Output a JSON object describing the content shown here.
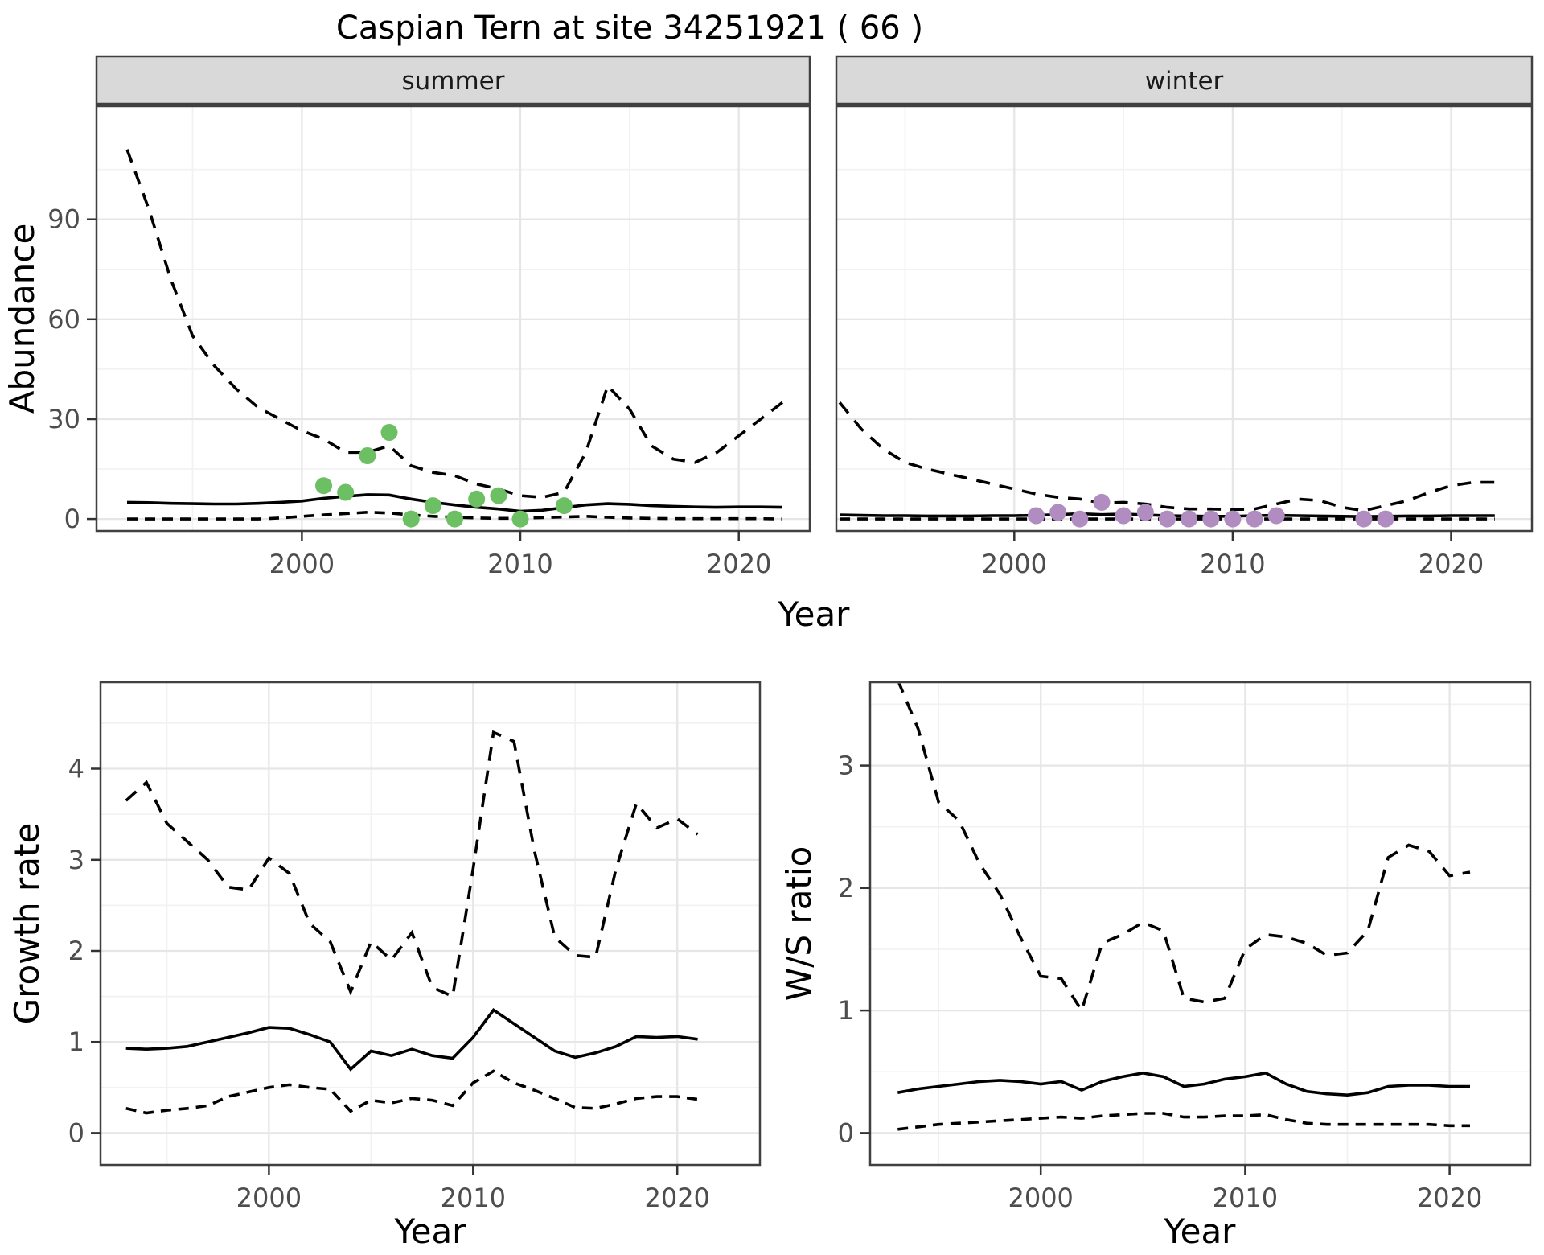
{
  "title": "Caspian Tern at site 34251921 ( 66 )",
  "shared_x_label": "Year",
  "colors": {
    "summer_points": "#6cbf63",
    "winter_points": "#b08cc0",
    "line": "#000000",
    "panel_border": "#404040",
    "strip_background": "#d9d9d9",
    "grid_major": "#e6e6e6",
    "grid_minor": "#f2f2f2",
    "tick_mark": "#333333",
    "tick_text": "#4d4d4d"
  },
  "chart_data": [
    {
      "type": "line",
      "name": "abundance-summer",
      "facet": "summer",
      "ylabel": "Abundance",
      "xlabel": "Year",
      "xlim": [
        1990.6,
        2023.25
      ],
      "ylim": [
        -3.6,
        124
      ],
      "xticks": [
        2000,
        2010,
        2020
      ],
      "yticks": [
        0,
        30,
        60,
        90
      ],
      "minor_x": [
        1995,
        2005,
        2015
      ],
      "minor_y": [
        15,
        45,
        75,
        105
      ],
      "x": [
        1992,
        1993,
        1994,
        1995,
        1996,
        1997,
        1998,
        1999,
        2000,
        2001,
        2002,
        2003,
        2004,
        2005,
        2006,
        2007,
        2008,
        2009,
        2010,
        2011,
        2012,
        2013,
        2014,
        2015,
        2016,
        2017,
        2018,
        2019,
        2020,
        2021,
        2022
      ],
      "series": [
        {
          "name": "upper-95ci",
          "style": "dashed",
          "values": [
            111,
            93,
            72,
            55,
            46,
            39,
            33.5,
            30,
            26.5,
            24,
            20,
            20,
            22,
            16,
            14,
            13,
            10.5,
            9,
            7,
            6.5,
            8,
            20,
            40,
            33,
            22,
            18,
            17,
            20,
            25,
            30,
            35
          ]
        },
        {
          "name": "median",
          "style": "solid",
          "values": [
            5,
            4.9,
            4.7,
            4.6,
            4.5,
            4.5,
            4.7,
            5,
            5.4,
            6.2,
            6.8,
            7.3,
            7.2,
            6,
            5,
            4.2,
            3.5,
            3,
            2.3,
            2.6,
            3.4,
            4.2,
            4.6,
            4.4,
            4,
            3.8,
            3.6,
            3.5,
            3.6,
            3.6,
            3.5
          ]
        },
        {
          "name": "lower-95ci",
          "style": "dashed",
          "values": [
            0,
            0,
            0,
            0,
            0,
            0,
            0,
            0.3,
            0.8,
            1.2,
            1.6,
            2,
            1.8,
            1.2,
            0.8,
            0.5,
            0.3,
            0.2,
            0.2,
            0.4,
            0.6,
            0.8,
            0.5,
            0.3,
            0.2,
            0.1,
            0.1,
            0.1,
            0.1,
            0.1,
            0
          ]
        }
      ],
      "points": {
        "name": "observed-counts",
        "color_key": "summer_points",
        "data": [
          [
            2001,
            10
          ],
          [
            2002,
            8
          ],
          [
            2003,
            19
          ],
          [
            2004,
            26
          ],
          [
            2005,
            0
          ],
          [
            2006,
            4
          ],
          [
            2007,
            0
          ],
          [
            2008,
            6
          ],
          [
            2009,
            7
          ],
          [
            2010,
            0
          ],
          [
            2012,
            4
          ]
        ]
      }
    },
    {
      "type": "line",
      "name": "abundance-winter",
      "facet": "winter",
      "ylabel": "Abundance",
      "xlabel": "Year",
      "xlim": [
        1991.85,
        2023.7
      ],
      "ylim": [
        -3.6,
        124
      ],
      "xticks": [
        2000,
        2010,
        2020
      ],
      "yticks": [
        0,
        30,
        60,
        90
      ],
      "minor_x": [
        1995,
        2005,
        2015
      ],
      "minor_y": [
        15,
        45,
        75,
        105
      ],
      "x": [
        1992,
        1993,
        1994,
        1995,
        1996,
        1997,
        1998,
        1999,
        2000,
        2001,
        2002,
        2003,
        2004,
        2005,
        2006,
        2007,
        2008,
        2009,
        2010,
        2011,
        2012,
        2013,
        2014,
        2015,
        2016,
        2017,
        2018,
        2019,
        2020,
        2021,
        2022
      ],
      "series": [
        {
          "name": "upper-95ci",
          "style": "dashed",
          "values": [
            35,
            27,
            21,
            17,
            15,
            13.5,
            12,
            10.5,
            9,
            7.5,
            6.5,
            6,
            4.8,
            5,
            4.5,
            3.5,
            3,
            3,
            2.8,
            3,
            4.5,
            6,
            5.5,
            3.5,
            2.5,
            4,
            5.5,
            8,
            10,
            11,
            11
          ]
        },
        {
          "name": "median",
          "style": "solid",
          "values": [
            1.2,
            1.1,
            1.0,
            1.0,
            0.9,
            0.9,
            0.9,
            1.0,
            1.0,
            1.1,
            1.3,
            1.6,
            1.3,
            1.5,
            1.2,
            1.0,
            0.9,
            0.8,
            0.8,
            1.0,
            1.1,
            1.0,
            0.9,
            0.8,
            0.7,
            0.8,
            0.9,
            0.9,
            1.0,
            1.0,
            1.0
          ]
        },
        {
          "name": "lower-95ci",
          "style": "dashed",
          "values": [
            0,
            0,
            0,
            0,
            0,
            0,
            0,
            0,
            0,
            0,
            0,
            0,
            0,
            0,
            0,
            0,
            0,
            0,
            0,
            0,
            0,
            0,
            0,
            0,
            0,
            0,
            0,
            0,
            0,
            0,
            0
          ]
        }
      ],
      "points": {
        "name": "observed-counts",
        "color_key": "winter_points",
        "data": [
          [
            2001,
            1
          ],
          [
            2002,
            2
          ],
          [
            2003,
            0
          ],
          [
            2004,
            5
          ],
          [
            2005,
            1
          ],
          [
            2006,
            2
          ],
          [
            2007,
            0
          ],
          [
            2008,
            0
          ],
          [
            2009,
            0
          ],
          [
            2010,
            0
          ],
          [
            2011,
            0
          ],
          [
            2012,
            1
          ],
          [
            2016,
            0
          ],
          [
            2017,
            0
          ]
        ]
      }
    },
    {
      "type": "line",
      "name": "growth-rate",
      "facet": null,
      "ylabel": "Growth rate",
      "xlabel": "Year",
      "xlim": [
        1991.75,
        2024.05
      ],
      "ylim": [
        -0.35,
        4.95
      ],
      "xticks": [
        2000,
        2010,
        2020
      ],
      "yticks": [
        0,
        1,
        2,
        3,
        4
      ],
      "minor_x": [
        1995,
        2005,
        2015
      ],
      "minor_y": [
        0.5,
        1.5,
        2.5,
        3.5,
        4.5
      ],
      "x": [
        1993,
        1994,
        1995,
        1996,
        1997,
        1998,
        1999,
        2000,
        2001,
        2002,
        2003,
        2004,
        2005,
        2006,
        2007,
        2008,
        2009,
        2010,
        2011,
        2012,
        2013,
        2014,
        2015,
        2016,
        2017,
        2018,
        2019,
        2020,
        2021
      ],
      "series": [
        {
          "name": "upper-95ci",
          "style": "dashed",
          "values": [
            3.65,
            3.85,
            3.4,
            3.2,
            3.0,
            2.7,
            2.67,
            3.02,
            2.85,
            2.3,
            2.1,
            1.55,
            2.1,
            1.9,
            2.2,
            1.6,
            1.5,
            2.9,
            4.4,
            4.3,
            3.1,
            2.15,
            1.95,
            1.93,
            2.9,
            3.62,
            3.35,
            3.45,
            3.28
          ]
        },
        {
          "name": "median",
          "style": "solid",
          "values": [
            0.93,
            0.92,
            0.93,
            0.95,
            1.0,
            1.05,
            1.1,
            1.16,
            1.15,
            1.08,
            1.0,
            0.7,
            0.9,
            0.85,
            0.92,
            0.85,
            0.82,
            1.05,
            1.35,
            1.2,
            1.05,
            0.9,
            0.83,
            0.88,
            0.95,
            1.06,
            1.05,
            1.06,
            1.03
          ]
        },
        {
          "name": "lower-95ci",
          "style": "dashed",
          "values": [
            0.27,
            0.22,
            0.25,
            0.27,
            0.3,
            0.4,
            0.45,
            0.5,
            0.53,
            0.5,
            0.48,
            0.24,
            0.36,
            0.33,
            0.38,
            0.36,
            0.3,
            0.55,
            0.68,
            0.55,
            0.47,
            0.38,
            0.28,
            0.27,
            0.32,
            0.38,
            0.4,
            0.4,
            0.37
          ]
        }
      ],
      "points": null
    },
    {
      "type": "line",
      "name": "ws-ratio",
      "facet": null,
      "ylabel": "W/S ratio",
      "xlabel": "Year",
      "xlim": [
        1991.65,
        2023.95
      ],
      "ylim": [
        -0.26,
        3.68
      ],
      "xticks": [
        2000,
        2010,
        2020
      ],
      "yticks": [
        0,
        1,
        2,
        3
      ],
      "minor_x": [
        1995,
        2005,
        2015
      ],
      "minor_y": [
        0.5,
        1.5,
        2.5,
        3.5
      ],
      "x": [
        1993,
        1994,
        1995,
        1996,
        1997,
        1998,
        1999,
        2000,
        2001,
        2002,
        2003,
        2004,
        2005,
        2006,
        2007,
        2008,
        2009,
        2010,
        2011,
        2012,
        2013,
        2014,
        2015,
        2016,
        2017,
        2018,
        2019,
        2020,
        2021
      ],
      "series": [
        {
          "name": "upper-95ci",
          "style": "dashed",
          "values": [
            3.7,
            3.3,
            2.7,
            2.55,
            2.2,
            1.95,
            1.6,
            1.28,
            1.26,
            1.0,
            1.55,
            1.62,
            1.72,
            1.65,
            1.1,
            1.07,
            1.1,
            1.5,
            1.62,
            1.6,
            1.55,
            1.45,
            1.47,
            1.65,
            2.25,
            2.35,
            2.3,
            2.1,
            2.13
          ]
        },
        {
          "name": "median",
          "style": "solid",
          "values": [
            0.33,
            0.36,
            0.38,
            0.4,
            0.42,
            0.43,
            0.42,
            0.4,
            0.42,
            0.35,
            0.42,
            0.46,
            0.49,
            0.46,
            0.38,
            0.4,
            0.44,
            0.46,
            0.49,
            0.4,
            0.34,
            0.32,
            0.31,
            0.33,
            0.38,
            0.39,
            0.39,
            0.38,
            0.38
          ]
        },
        {
          "name": "lower-95ci",
          "style": "dashed",
          "values": [
            0.03,
            0.05,
            0.07,
            0.08,
            0.09,
            0.1,
            0.11,
            0.12,
            0.13,
            0.12,
            0.14,
            0.15,
            0.16,
            0.16,
            0.13,
            0.13,
            0.14,
            0.14,
            0.15,
            0.11,
            0.08,
            0.07,
            0.07,
            0.07,
            0.07,
            0.07,
            0.07,
            0.06,
            0.06
          ]
        }
      ],
      "points": null
    }
  ]
}
